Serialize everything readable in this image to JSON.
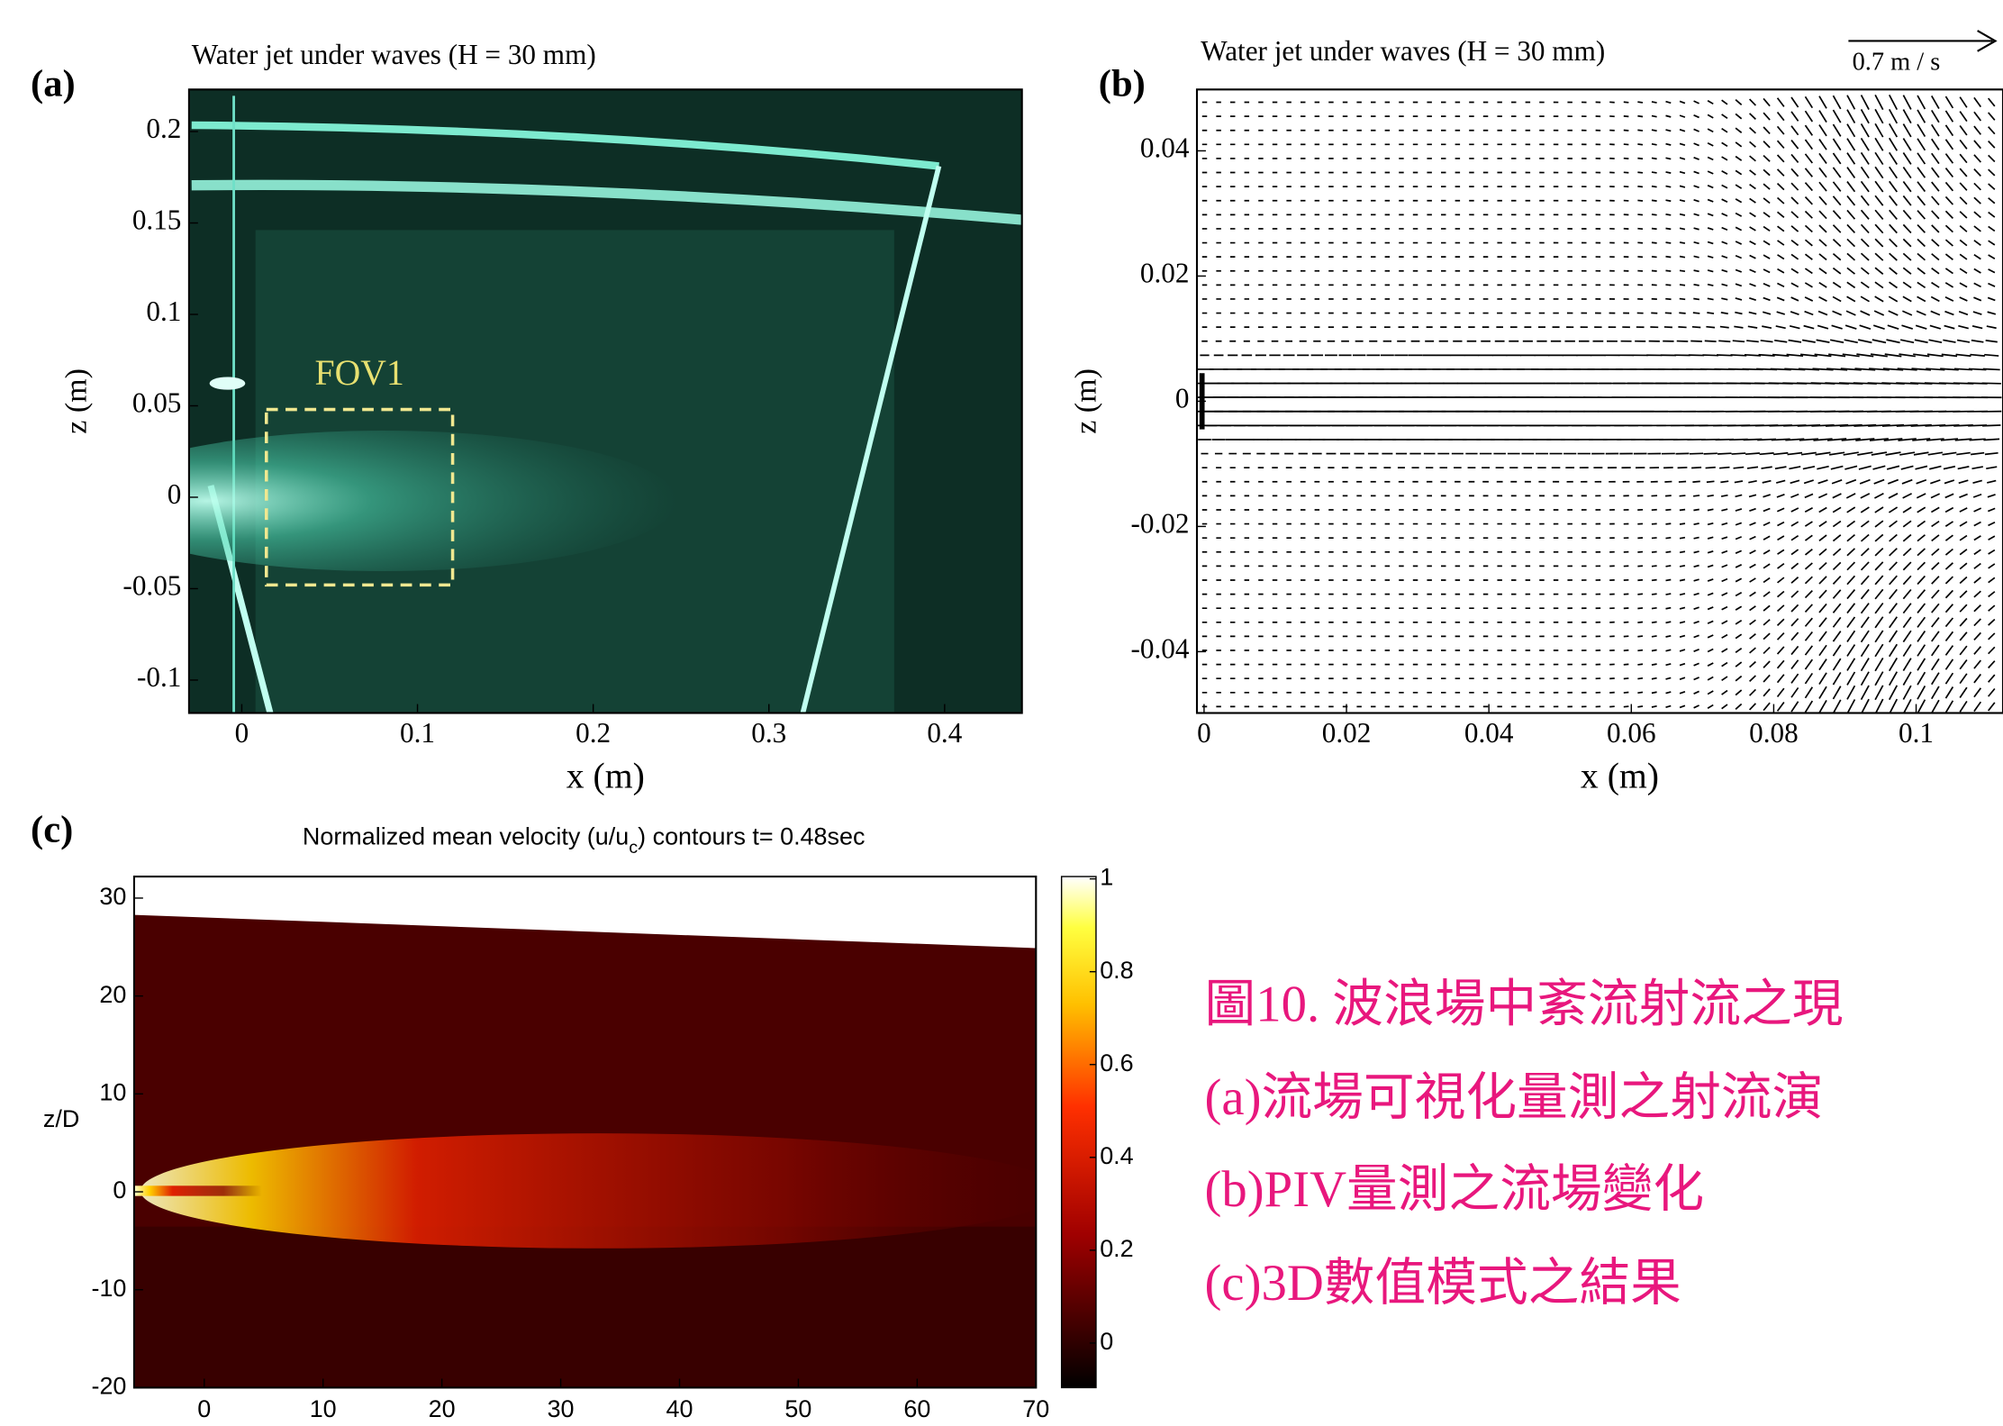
{
  "chart_data": [
    {
      "type": "image",
      "panel_label": "(a)",
      "title": "Water jet under waves (H = 30 mm)",
      "xlabel": "x (m)",
      "ylabel": "z (m)",
      "annotation": "FOV1",
      "xlim": [
        -0.03,
        0.444
      ],
      "ylim": [
        -0.118,
        0.223
      ],
      "xticks": [
        0,
        0.1,
        0.2,
        0.3,
        0.4
      ],
      "yticks": [
        -0.1,
        -0.05,
        0,
        0.05,
        0.1,
        0.15,
        0.2
      ]
    },
    {
      "type": "quiver",
      "panel_label": "(b)",
      "title": "Water jet under waves (H = 30 mm)",
      "scale_label": "0.7 m / s",
      "xlabel": "x (m)",
      "ylabel": "z (m)",
      "xlim": [
        -0.001,
        0.1122
      ],
      "ylim": [
        -0.0498,
        0.0498
      ],
      "xticks": [
        0,
        0.02,
        0.04,
        0.06,
        0.08,
        0.1
      ],
      "yticks": [
        -0.04,
        -0.02,
        0,
        0.02,
        0.04
      ]
    },
    {
      "type": "heatmap",
      "panel_label": "(c)",
      "title": "Normalized mean velocity (u/u",
      "title_sub": "c",
      "title_end": ") contours t= 0.48sec",
      "ylabel": "z/D",
      "xlim": [
        -5.9,
        70
      ],
      "ylim": [
        -20,
        32.2
      ],
      "xticks": [
        0,
        10,
        20,
        30,
        40,
        50,
        60,
        70
      ],
      "yticks": [
        -20,
        -10,
        0,
        10,
        20,
        30
      ],
      "colorbar": {
        "lim": [
          -0.096,
          1.005
        ],
        "ticks": [
          0,
          0.2,
          0.4,
          0.6,
          0.8,
          1
        ]
      }
    }
  ],
  "caption": {
    "lines": [
      "圖10. 波浪場中紊流射流之現",
      "(a)流場可視化量測之射流演",
      "(b)PIV量測之流場變化",
      "(c)3D數值模式之結果"
    ]
  }
}
